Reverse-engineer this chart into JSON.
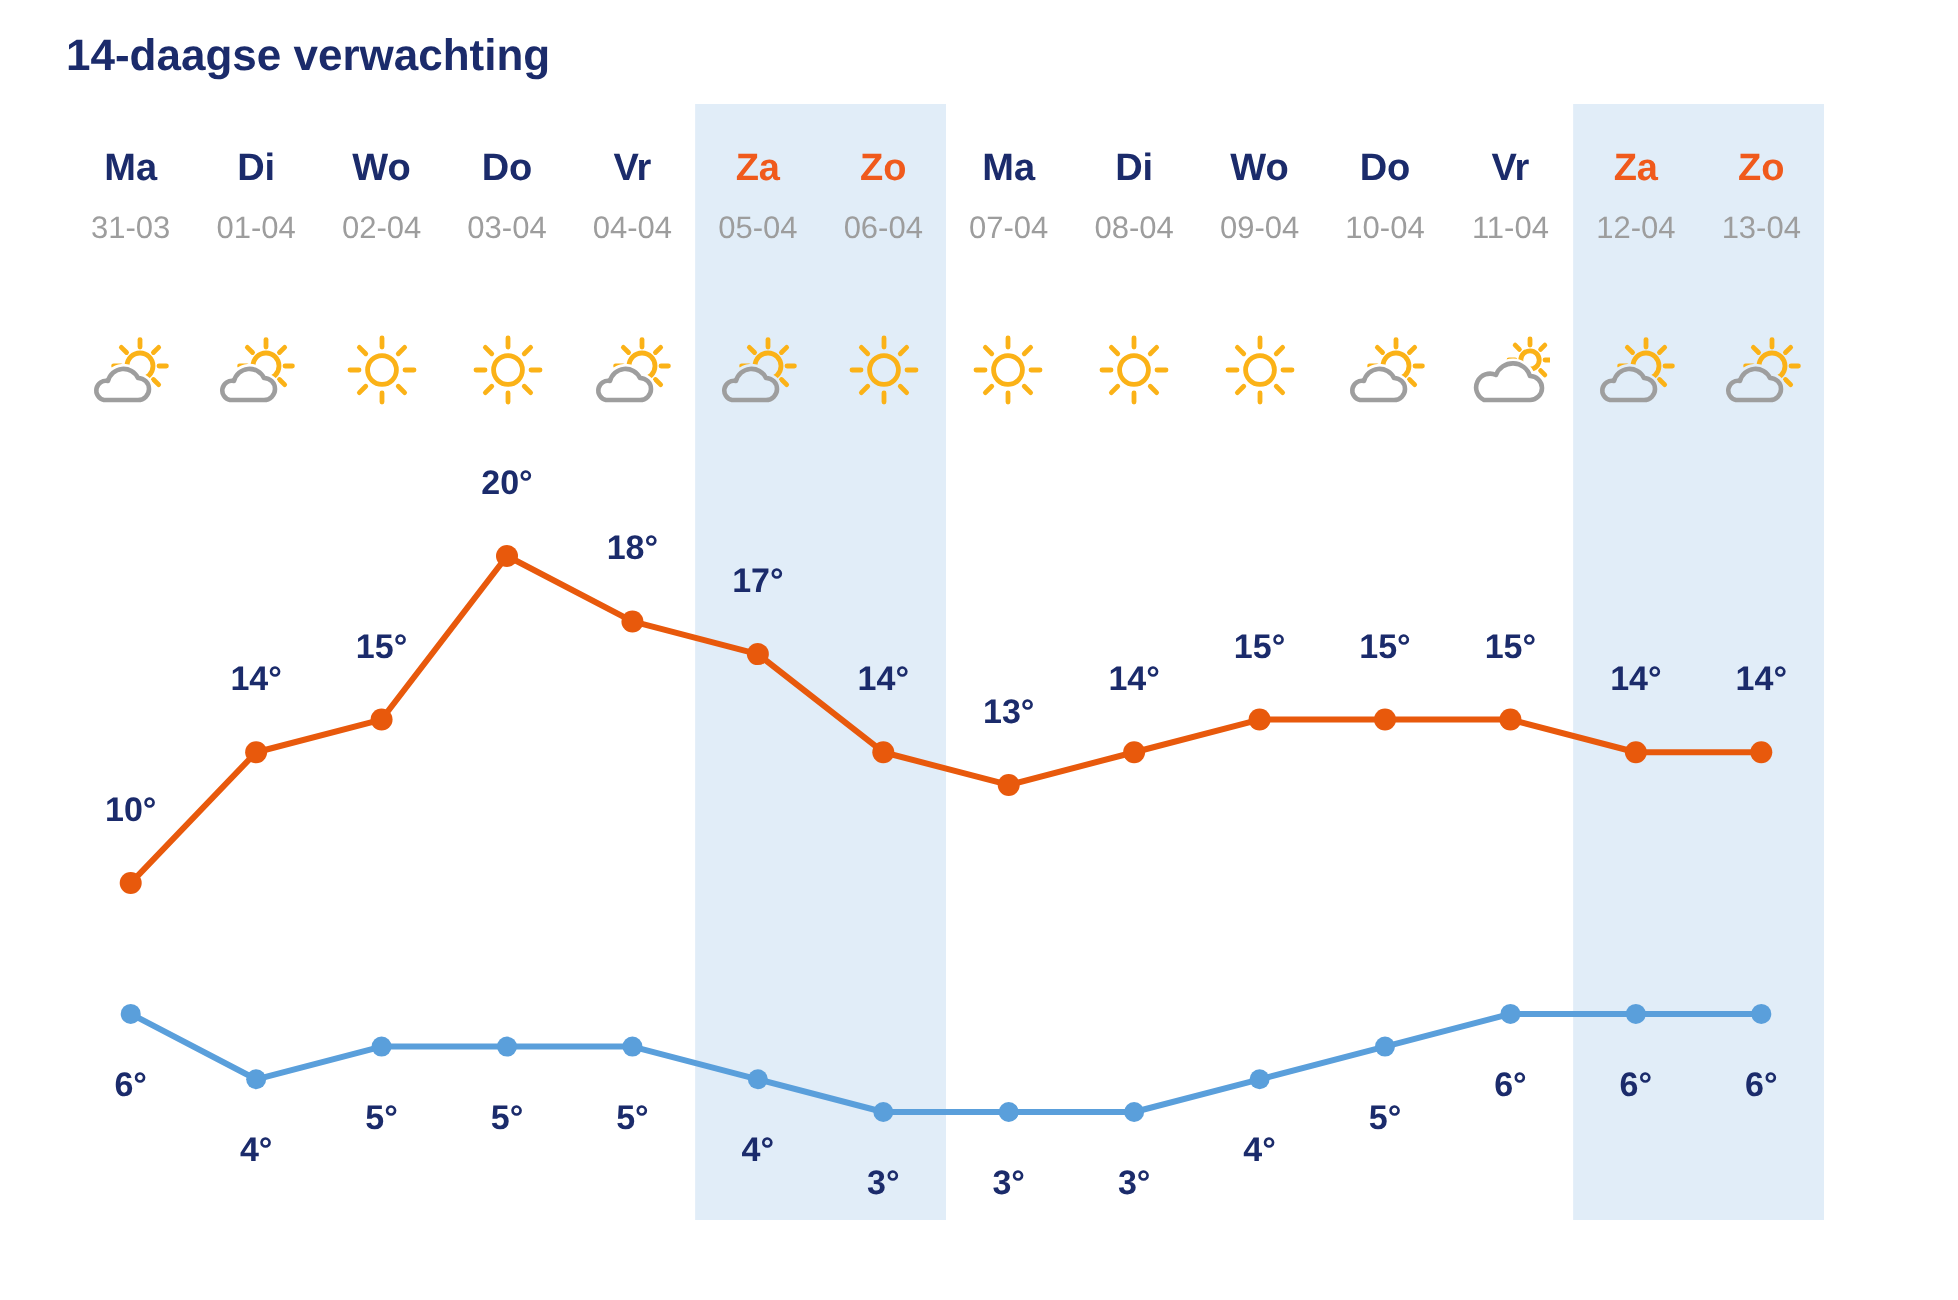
{
  "chart_data": {
    "type": "line",
    "title": "14-daagse verwachting",
    "categories": [
      "Ma\n31-03",
      "Di\n01-04",
      "Wo\n02-04",
      "Do\n03-04",
      "Vr\n04-04",
      "Za\n05-04",
      "Zo\n06-04",
      "Ma\n07-04",
      "Di\n08-04",
      "Wo\n09-04",
      "Do\n10-04",
      "Vr\n11-04",
      "Za\n12-04",
      "Zo\n13-04"
    ],
    "series": [
      {
        "color": "#e8590c",
        "values": [
          10,
          14,
          15,
          20,
          18,
          17,
          14,
          13,
          14,
          15,
          15,
          15,
          14,
          14
        ],
        "value_labels": [
          "10°",
          "14°",
          "15°",
          "20°",
          "18°",
          "17°",
          "14°",
          "13°",
          "14°",
          "15°",
          "15°",
          "15°",
          "14°",
          "14°"
        ]
      },
      {
        "color": "#5a9fdb",
        "values": [
          6,
          4,
          5,
          5,
          5,
          4,
          3,
          3,
          3,
          4,
          5,
          6,
          6,
          6
        ],
        "value_labels": [
          "6°",
          "4°",
          "5°",
          "5°",
          "5°",
          "4°",
          "3°",
          "3°",
          "3°",
          "4°",
          "5°",
          "6°",
          "6°",
          "6°"
        ]
      }
    ],
    "bands": [
      {
        "axis": "x",
        "from": "Za\n05-04",
        "to": "Zo\n06-04",
        "color": "#e1edf8"
      },
      {
        "axis": "x",
        "from": "Za\n12-04",
        "to": "Zo\n13-04",
        "color": "#e1edf8"
      }
    ],
    "marker": "circle",
    "line_style": "solid",
    "tick_labels": "x"
  }
}
